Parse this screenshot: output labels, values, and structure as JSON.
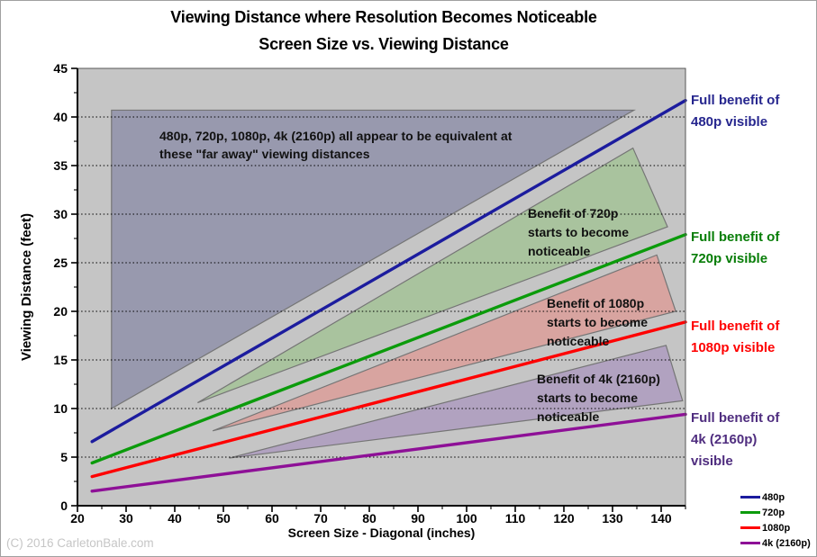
{
  "window": {
    "copyright": "(C) 2016 CarletonBale.com"
  },
  "chart_data": {
    "type": "line",
    "title": "Viewing Distance where Resolution Becomes Noticeable",
    "subtitle": "Screen Size vs. Viewing Distance",
    "xlabel": "Screen Size - Diagonal (inches)",
    "ylabel": "Viewing Distance (feet)",
    "xlim": [
      20,
      145
    ],
    "ylim": [
      0,
      45
    ],
    "x_ticks": [
      20,
      30,
      40,
      50,
      60,
      70,
      80,
      90,
      100,
      110,
      120,
      130,
      140
    ],
    "x_minor_ticks": [
      25,
      35,
      45,
      55,
      65,
      75,
      85,
      95,
      105,
      115,
      125,
      135,
      145
    ],
    "y_ticks": [
      0,
      5,
      10,
      15,
      20,
      25,
      30,
      35,
      40,
      45
    ],
    "y_minor_ticks": [
      2.5,
      7.5,
      12.5,
      17.5,
      22.5,
      27.5,
      32.5,
      37.5,
      42.5
    ],
    "grid": {
      "horizontal": true,
      "style": "dotted",
      "vertical": false
    },
    "plot_bg": "#c5c5c5",
    "legend_position": "bottom-right",
    "series": [
      {
        "name": "480p",
        "color": "#1c1c9e",
        "points": [
          [
            23,
            6.6
          ],
          [
            145,
            41.7
          ]
        ]
      },
      {
        "name": "720p",
        "color": "#0b9b0b",
        "points": [
          [
            23,
            4.4
          ],
          [
            145,
            27.9
          ]
        ]
      },
      {
        "name": "1080p",
        "color": "#ff0000",
        "points": [
          [
            23,
            3.0
          ],
          [
            145,
            18.9
          ]
        ]
      },
      {
        "name": "4k (2160p)",
        "color": "#8e1097",
        "points": [
          [
            23,
            1.5
          ],
          [
            145,
            9.4
          ]
        ]
      }
    ],
    "regions": [
      {
        "name": "equivalent-region",
        "fill": "#9899ae",
        "stroke": "#757575",
        "points": [
          [
            27,
            10.0
          ],
          [
            27,
            40.7
          ],
          [
            134.4,
            40.7
          ]
        ]
      },
      {
        "name": "benefit-720p-region",
        "fill": "#a9c39e",
        "stroke": "#757575",
        "points": [
          [
            44.7,
            10.6
          ],
          [
            134.2,
            36.8
          ],
          [
            141.3,
            28.7
          ]
        ]
      },
      {
        "name": "benefit-1080p-region",
        "fill": "#d8a4a0",
        "stroke": "#757575",
        "points": [
          [
            47.8,
            7.7
          ],
          [
            139.1,
            25.8
          ],
          [
            143.0,
            20.0
          ]
        ]
      },
      {
        "name": "benefit-4k-region",
        "fill": "#b1a2c0",
        "stroke": "#757575",
        "points": [
          [
            51.2,
            4.9
          ],
          [
            141.0,
            16.5
          ],
          [
            144.4,
            10.8
          ]
        ]
      }
    ],
    "annotations": [
      {
        "text": "480p, 720p, 1080p, 4k (2160p) all appear to be equivalent at\nthese \"far away\" viewing distances",
        "color": "#111111"
      },
      {
        "text": "Benefit of 720p\nstarts to become\nnoticeable",
        "color": "#111111"
      },
      {
        "text": "Benefit of 1080p\nstarts to become\nnoticeable",
        "color": "#111111"
      },
      {
        "text": "Benefit of 4k (2160p)\nstarts to become\nnoticeable",
        "color": "#111111"
      }
    ],
    "side_labels": [
      {
        "text": "Full benefit of\n480p visible",
        "color": "#26268e"
      },
      {
        "text": "Full benefit of\n720p visible",
        "color": "#077d07"
      },
      {
        "text": "Full benefit of\n1080p visible",
        "color": "#ff0000"
      },
      {
        "text": "Full benefit of\n4k (2160p)\nvisible",
        "color": "#4f2d7f"
      }
    ],
    "legend": [
      {
        "label": "480p",
        "color": "#1c1c9e"
      },
      {
        "label": "720p",
        "color": "#0b9b0b"
      },
      {
        "label": "1080p",
        "color": "#ff0000"
      },
      {
        "label": "4k (2160p)",
        "color": "#8e1097"
      }
    ]
  }
}
